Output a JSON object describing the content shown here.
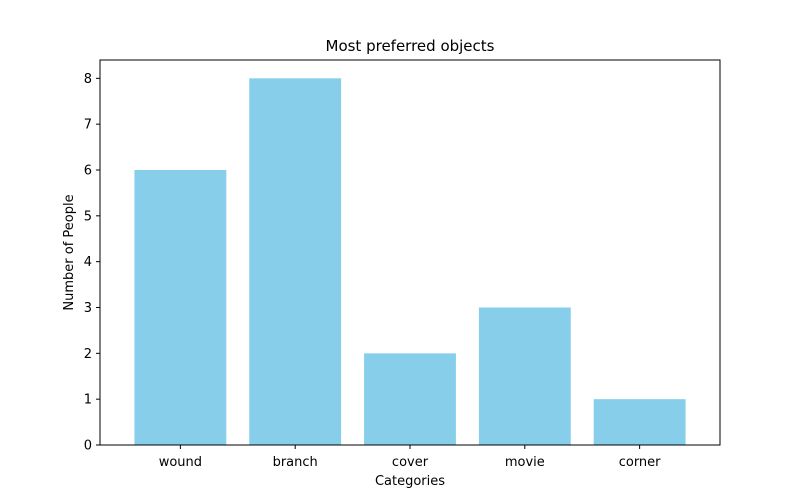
{
  "chart_data": {
    "type": "bar",
    "title": "Most preferred objects",
    "xlabel": "Categories",
    "ylabel": "Number of People",
    "categories": [
      "wound",
      "branch",
      "cover",
      "movie",
      "corner"
    ],
    "values": [
      6,
      8,
      2,
      3,
      1
    ],
    "ylim": [
      0,
      8.4
    ],
    "yticks": [
      0,
      1,
      2,
      3,
      4,
      5,
      6,
      7,
      8
    ],
    "bar_color": "#87CEEB",
    "grid": false,
    "legend": "none"
  }
}
